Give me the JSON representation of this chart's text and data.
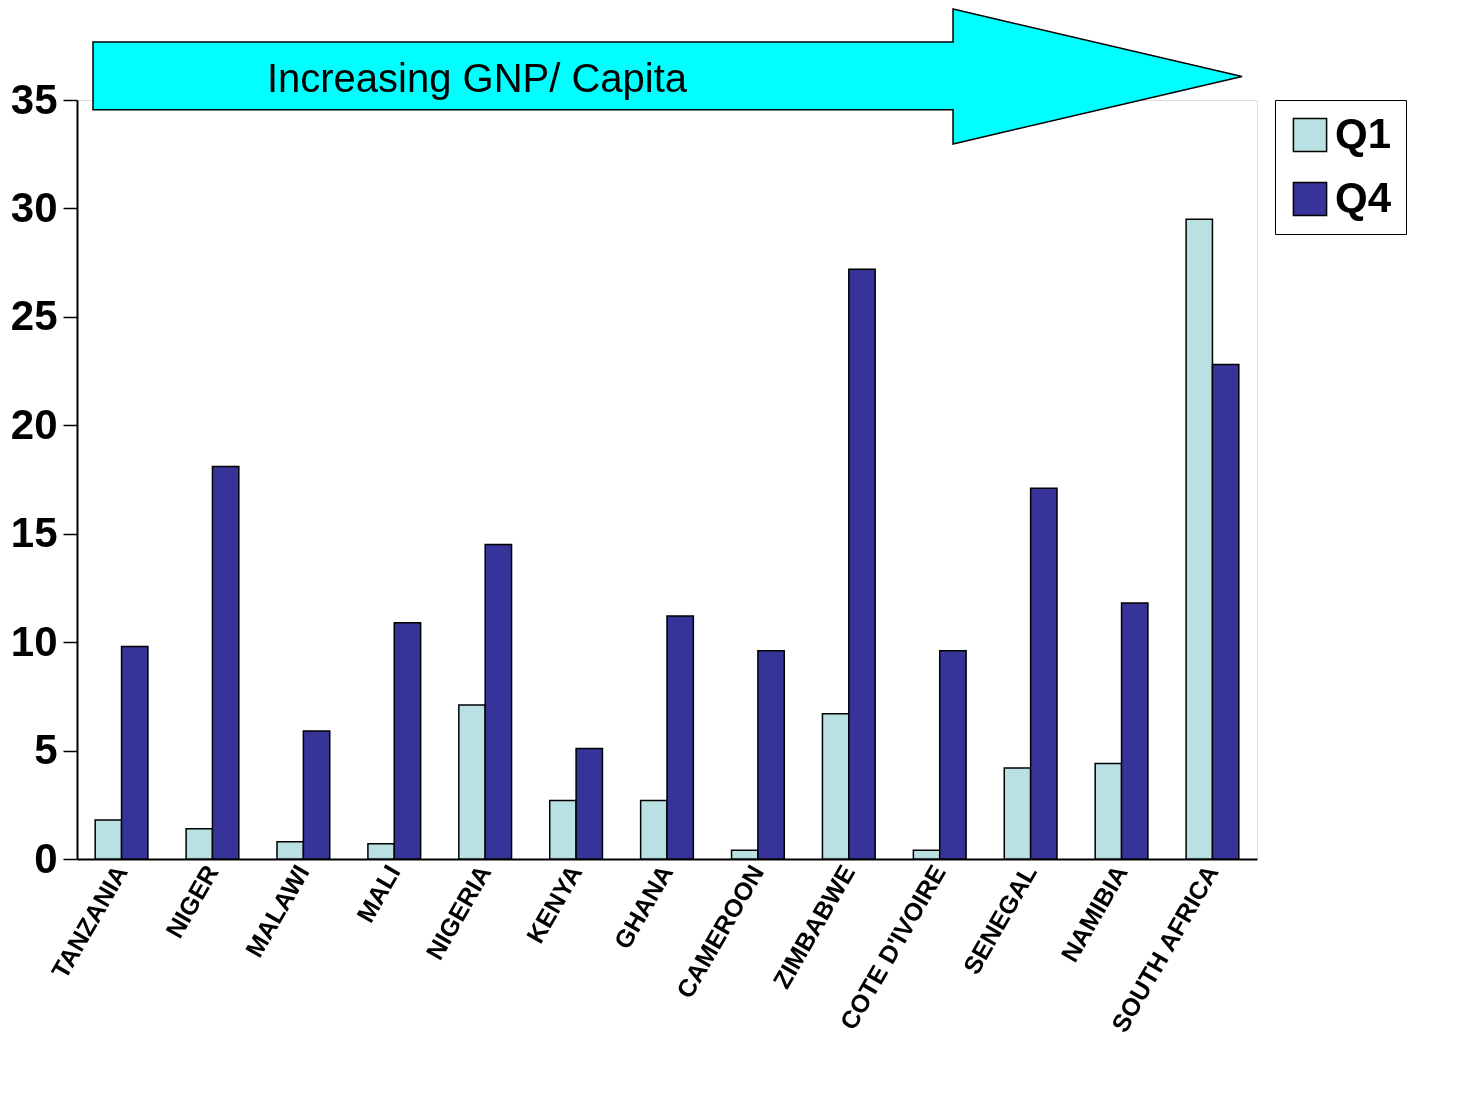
{
  "chart_data": {
    "type": "bar",
    "categories": [
      "TANZANIA",
      "NIGER",
      "MALAWI",
      "MALI",
      "NIGERIA",
      "KENYA",
      "GHANA",
      "CAMEROON",
      "ZIMBABWE",
      "COTE D'IVOIRE",
      "SENEGAL",
      "NAMIBIA",
      "SOUTH AFRICA"
    ],
    "series": [
      {
        "name": "Q1",
        "color": "#b9e0e3",
        "values": [
          1.8,
          1.4,
          0.8,
          0.7,
          7.1,
          2.7,
          2.7,
          0.4,
          6.7,
          0.4,
          4.2,
          4.4,
          29.5
        ]
      },
      {
        "name": "Q4",
        "color": "#363499",
        "values": [
          9.8,
          18.1,
          5.9,
          10.9,
          14.5,
          5.1,
          11.2,
          9.6,
          27.2,
          9.6,
          17.1,
          11.8,
          22.8
        ]
      }
    ],
    "ylim": [
      0,
      35
    ],
    "yticks": [
      0,
      5,
      10,
      15,
      20,
      25,
      30,
      35
    ],
    "grid": false,
    "legend": "right",
    "annotations": [
      "Increasing GNP/ Capita"
    ]
  }
}
